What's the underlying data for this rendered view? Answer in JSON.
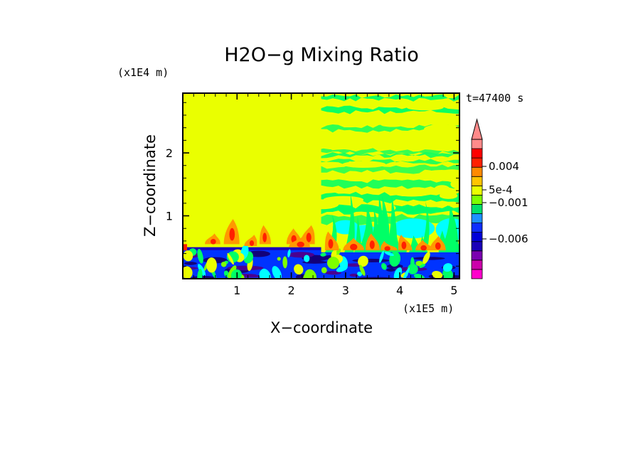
{
  "chart_data": {
    "type": "heatmap",
    "title": "H2O−g Mixing Ratio",
    "xlabel": "X−coordinate",
    "ylabel": "Z−coordinate",
    "x_unit": "(x1E5 m)",
    "y_unit": "(x1E4 m)",
    "time_label": "t=47400 s",
    "xlim": [
      0,
      5.1
    ],
    "ylim": [
      0,
      2.95
    ],
    "x_ticks": [
      1,
      2,
      3,
      4,
      5
    ],
    "y_ticks": [
      1,
      2
    ],
    "colorbar": {
      "labels": [
        {
          "text": "0.004",
          "value": 0.004
        },
        {
          "text": "5e-4",
          "value": 0.0005
        },
        {
          "text": "−0.001",
          "value": -0.001
        },
        {
          "text": "−0.006",
          "value": -0.006
        }
      ],
      "colors": [
        "#ff00cc",
        "#cc00aa",
        "#7a00b0",
        "#1a00b8",
        "#0000d8",
        "#0f2eff",
        "#1e90ff",
        "#00e06a",
        "#7dff00",
        "#eaff00",
        "#ffc400",
        "#ff8a00",
        "#ff2000",
        "#ff0000",
        "#ff8a8a"
      ],
      "extend": "max"
    },
    "regions": [
      {
        "name": "upper-left",
        "level": "yellow",
        "x": [
          0,
          2.55
        ],
        "z": [
          0.5,
          2.95
        ]
      },
      {
        "name": "upper-right",
        "level": "mixed yellow/green",
        "x": [
          2.55,
          5.1
        ],
        "z": [
          0.9,
          2.95
        ]
      },
      {
        "name": "boundary-layer",
        "level": "blue",
        "x": [
          0,
          5.1
        ],
        "z": [
          0,
          0.5
        ]
      }
    ],
    "colors": {
      "yellow": "#eaff00",
      "green": "#00ff66",
      "blue": "#0033ff",
      "cyan": "#00ffff",
      "orange": "#ff9900",
      "red": "#ff2000"
    }
  }
}
